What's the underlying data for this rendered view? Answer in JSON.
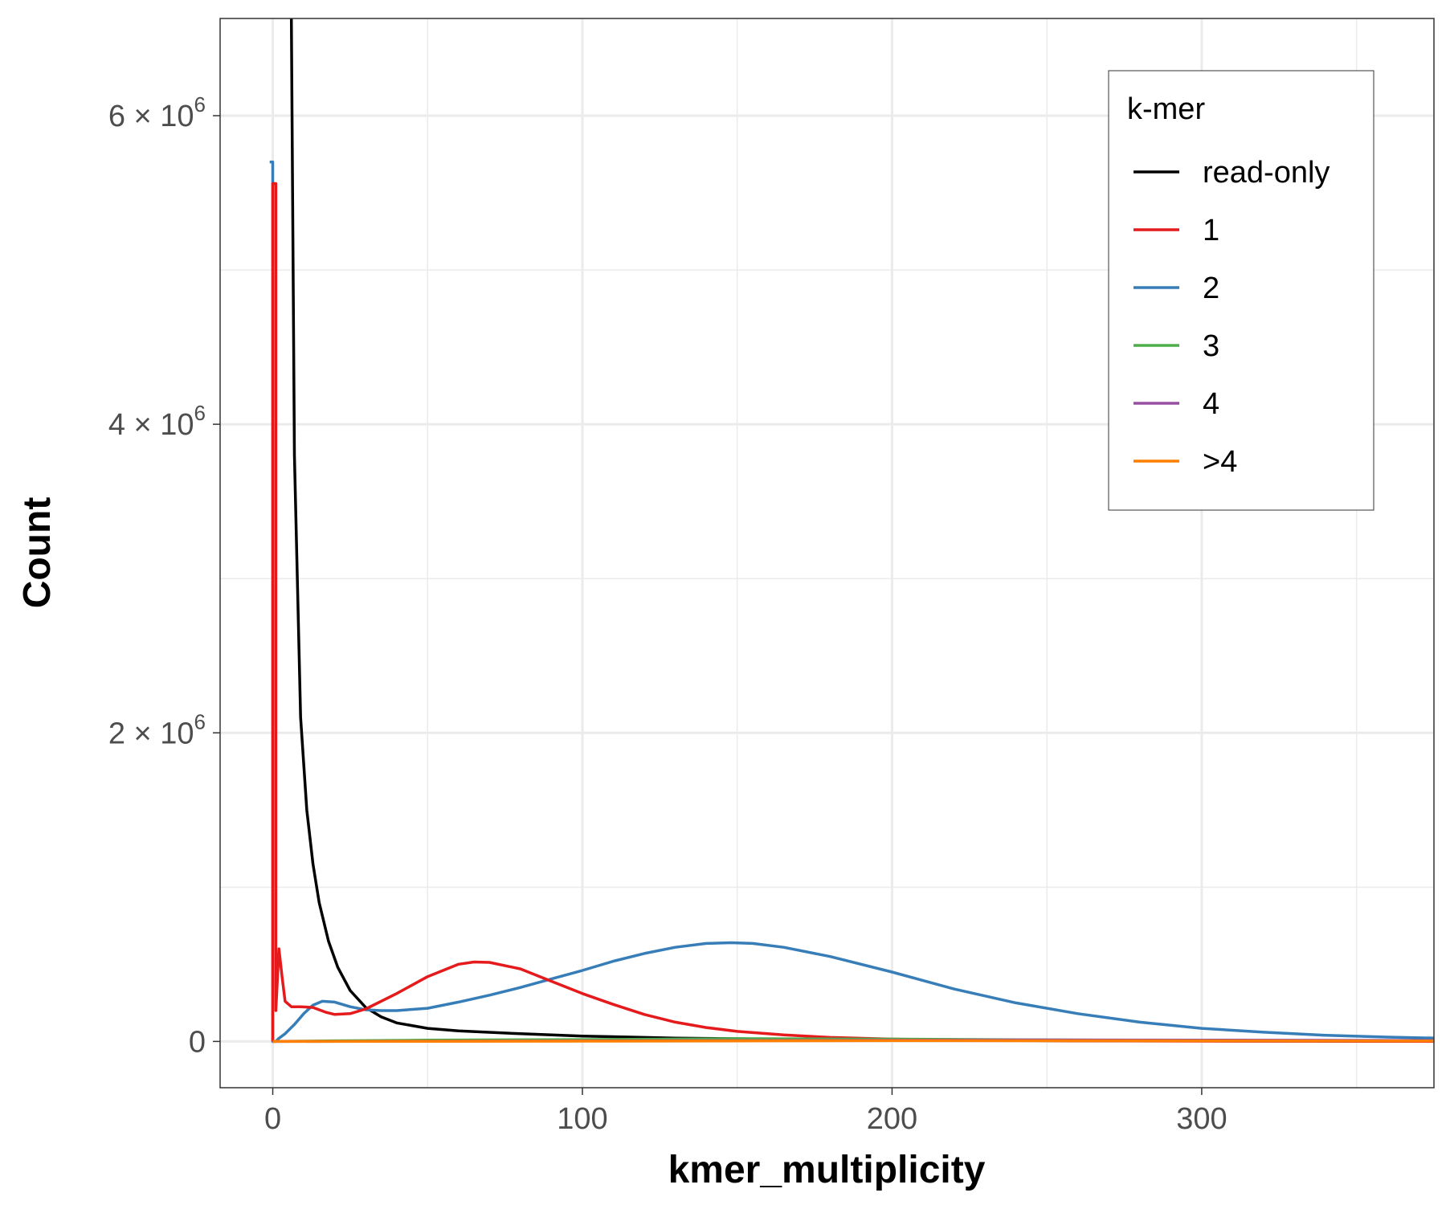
{
  "chart_data": {
    "type": "line",
    "xlabel": "kmer_multiplicity",
    "ylabel": "Count",
    "xlim": [
      -17,
      375
    ],
    "ylim": [
      -300000,
      6630000
    ],
    "x_ticks": [
      0,
      100,
      200,
      300
    ],
    "x_tick_labels": [
      "0",
      "100",
      "200",
      "300"
    ],
    "y_ticks": [
      0,
      2000000,
      4000000,
      6000000
    ],
    "y_tick_labels": [
      {
        "mantissa": "0",
        "times": "",
        "base": "",
        "exponent": ""
      },
      {
        "mantissa": "2",
        "times": "×",
        "base": "10",
        "exponent": "6"
      },
      {
        "mantissa": "4",
        "times": "×",
        "base": "10",
        "exponent": "6"
      },
      {
        "mantissa": "6",
        "times": "×",
        "base": "10",
        "exponent": "6"
      }
    ],
    "grid": true,
    "legend": {
      "title": "k-mer",
      "position": "top-right",
      "entries": [
        {
          "label": "read-only",
          "color": "#000000"
        },
        {
          "label": "1",
          "color": "#e41a1c"
        },
        {
          "label": "2",
          "color": "#377eb8"
        },
        {
          "label": "3",
          "color": "#4daf4a"
        },
        {
          "label": "4",
          "color": "#984ea3"
        },
        {
          "label": ">4",
          "color": "#ff7f00"
        }
      ]
    },
    "series": [
      {
        "name": "read-only",
        "color": "#000000",
        "points": [
          [
            6,
            6630000
          ],
          [
            7,
            3800000
          ],
          [
            9,
            2100000
          ],
          [
            11,
            1500000
          ],
          [
            13,
            1150000
          ],
          [
            15,
            900000
          ],
          [
            18,
            650000
          ],
          [
            21,
            480000
          ],
          [
            25,
            330000
          ],
          [
            30,
            220000
          ],
          [
            35,
            160000
          ],
          [
            40,
            120000
          ],
          [
            50,
            85000
          ],
          [
            60,
            68000
          ],
          [
            80,
            50000
          ],
          [
            100,
            35000
          ],
          [
            130,
            22000
          ],
          [
            160,
            15000
          ],
          [
            200,
            9000
          ],
          [
            250,
            5000
          ],
          [
            300,
            3000
          ],
          [
            375,
            1500
          ]
        ]
      },
      {
        "name": "2",
        "color": "#377eb8",
        "points": [
          [
            -1,
            5700000
          ],
          [
            0,
            5700000
          ],
          [
            0,
            0
          ],
          [
            1,
            0
          ],
          [
            2,
            20000
          ],
          [
            4,
            50000
          ],
          [
            7,
            110000
          ],
          [
            10,
            180000
          ],
          [
            13,
            235000
          ],
          [
            16,
            260000
          ],
          [
            20,
            255000
          ],
          [
            25,
            225000
          ],
          [
            30,
            205000
          ],
          [
            35,
            200000
          ],
          [
            40,
            200000
          ],
          [
            50,
            215000
          ],
          [
            60,
            255000
          ],
          [
            70,
            300000
          ],
          [
            80,
            350000
          ],
          [
            90,
            405000
          ],
          [
            100,
            460000
          ],
          [
            110,
            520000
          ],
          [
            120,
            570000
          ],
          [
            130,
            610000
          ],
          [
            140,
            635000
          ],
          [
            148,
            640000
          ],
          [
            155,
            635000
          ],
          [
            165,
            610000
          ],
          [
            180,
            550000
          ],
          [
            200,
            450000
          ],
          [
            220,
            340000
          ],
          [
            240,
            250000
          ],
          [
            260,
            180000
          ],
          [
            280,
            125000
          ],
          [
            300,
            85000
          ],
          [
            320,
            60000
          ],
          [
            340,
            40000
          ],
          [
            360,
            28000
          ],
          [
            375,
            22000
          ]
        ]
      },
      {
        "name": "1",
        "color": "#e41a1c",
        "points": [
          [
            0,
            0
          ],
          [
            0,
            5560000
          ],
          [
            1,
            5560000
          ],
          [
            1,
            200000
          ],
          [
            2,
            600000
          ],
          [
            3,
            420000
          ],
          [
            4,
            260000
          ],
          [
            6,
            225000
          ],
          [
            9,
            225000
          ],
          [
            13,
            220000
          ],
          [
            17,
            190000
          ],
          [
            20,
            175000
          ],
          [
            25,
            180000
          ],
          [
            30,
            210000
          ],
          [
            40,
            310000
          ],
          [
            50,
            420000
          ],
          [
            60,
            500000
          ],
          [
            65,
            515000
          ],
          [
            70,
            512000
          ],
          [
            80,
            470000
          ],
          [
            90,
            390000
          ],
          [
            100,
            310000
          ],
          [
            110,
            240000
          ],
          [
            120,
            175000
          ],
          [
            130,
            125000
          ],
          [
            140,
            90000
          ],
          [
            150,
            65000
          ],
          [
            165,
            42000
          ],
          [
            180,
            26000
          ],
          [
            200,
            15000
          ],
          [
            230,
            8000
          ],
          [
            260,
            4000
          ],
          [
            300,
            2000
          ],
          [
            375,
            500
          ]
        ]
      },
      {
        "name": "3",
        "color": "#4daf4a",
        "points": [
          [
            0,
            0
          ],
          [
            20,
            4000
          ],
          [
            50,
            8000
          ],
          [
            100,
            12000
          ],
          [
            150,
            18000
          ],
          [
            200,
            15000
          ],
          [
            250,
            10000
          ],
          [
            300,
            6000
          ],
          [
            375,
            3000
          ]
        ]
      },
      {
        "name": "4",
        "color": "#984ea3",
        "points": [
          [
            0,
            0
          ],
          [
            50,
            2000
          ],
          [
            100,
            4000
          ],
          [
            150,
            6000
          ],
          [
            200,
            8000
          ],
          [
            250,
            10000
          ],
          [
            300,
            9000
          ],
          [
            375,
            6000
          ]
        ]
      },
      {
        "name": ">4",
        "color": "#ff7f00",
        "points": [
          [
            0,
            0
          ],
          [
            50,
            1000
          ],
          [
            100,
            2000
          ],
          [
            200,
            5000
          ],
          [
            300,
            4000
          ],
          [
            375,
            3000
          ]
        ]
      }
    ]
  }
}
